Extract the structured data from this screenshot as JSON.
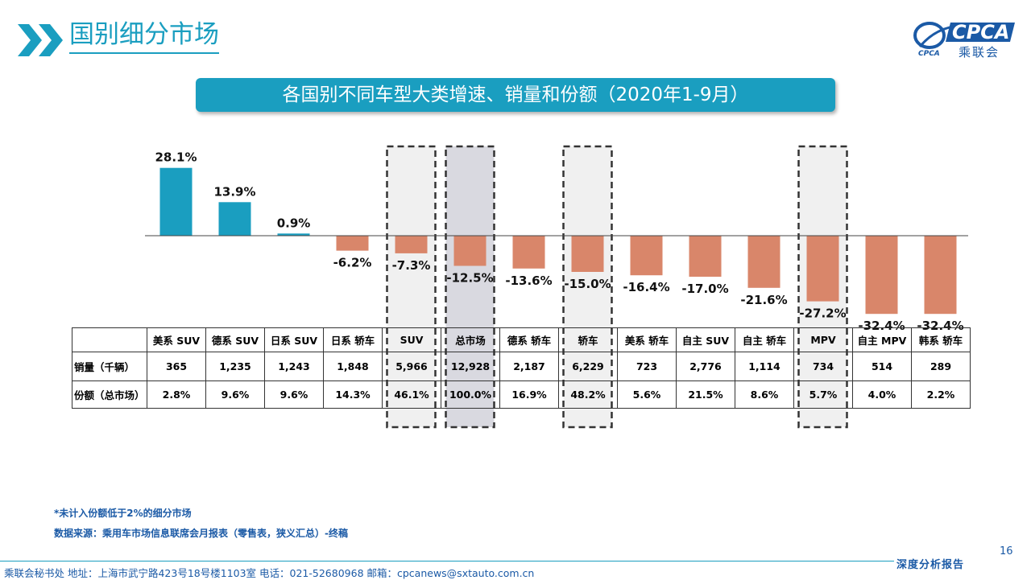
{
  "header": {
    "title": "国别细分市场",
    "logo": {
      "main": "CPCA",
      "cn": "乘联会",
      "sub": "CPCA"
    }
  },
  "chart_data": {
    "type": "bar",
    "title": "各国别不同车型大类增速、销量和份额（2020年1-9月）",
    "categories": [
      "美系 SUV",
      "德系 SUV",
      "日系 SUV",
      "日系 轿车",
      "SUV",
      "总市场",
      "德系 轿车",
      "轿车",
      "美系 轿车",
      "自主 SUV",
      "自主 轿车",
      "MPV",
      "自主 MPV",
      "韩系 轿车"
    ],
    "values": [
      28.1,
      13.9,
      0.9,
      -6.2,
      -7.3,
      -12.5,
      -13.6,
      -15.0,
      -16.4,
      -17.0,
      -21.6,
      -27.2,
      -32.4,
      -32.4
    ],
    "value_labels": [
      "28.1%",
      "13.9%",
      "0.9%",
      "-6.2%",
      "-7.3%",
      "-12.5%",
      "-13.6%",
      "-15.0%",
      "-16.4%",
      "-17.0%",
      "-21.6%",
      "-27.2%",
      "-32.4%",
      "-32.4%"
    ],
    "ylim": [
      -35,
      30
    ],
    "colors": {
      "positive": "#1a9ec0",
      "negative": "#d9866a"
    },
    "highlighted": [
      "SUV",
      "总市场",
      "轿车",
      "MPV"
    ],
    "table": {
      "row_labels": [
        "销量（千辆）",
        "份额（总市场）"
      ],
      "sales": [
        "365",
        "1,235",
        "1,243",
        "1,848",
        "5,966",
        "12,928",
        "2,187",
        "6,229",
        "723",
        "2,776",
        "1,114",
        "734",
        "514",
        "289"
      ],
      "share": [
        "2.8%",
        "9.6%",
        "9.6%",
        "14.3%",
        "46.1%",
        "100.0%",
        "16.9%",
        "48.2%",
        "5.6%",
        "21.5%",
        "8.6%",
        "5.7%",
        "4.0%",
        "2.2%"
      ]
    }
  },
  "notes": {
    "note1": "*未计入份额低于2%的细分市场",
    "note2": "数据来源：乘用车市场信息联席会月报表（零售表，狭义汇总）-终稿"
  },
  "footer": {
    "contact": "乘联会秘书处   地址：上海市武宁路423号18号楼1103室   电话：021-52680968   邮箱：cpcanews@sxtauto.com.cn",
    "right": "深度分析报告",
    "page": "16"
  }
}
